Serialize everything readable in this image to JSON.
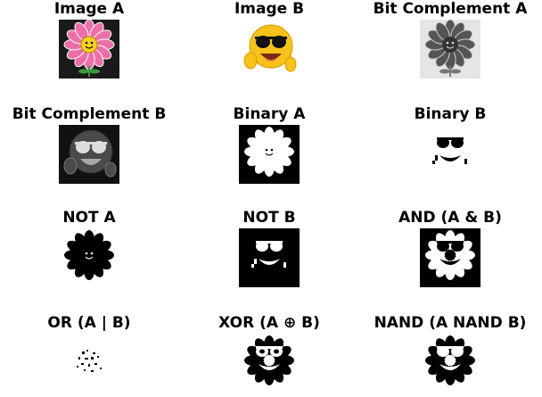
{
  "panels": [
    {
      "title": "Image A",
      "content": "color-flower"
    },
    {
      "title": "Image B",
      "content": "color-emoji"
    },
    {
      "title": "Bit Complement A",
      "content": "gray-flower"
    },
    {
      "title": "Bit Complement B",
      "content": "gray-emoji"
    },
    {
      "title": "Binary A",
      "content": "binary-flower"
    },
    {
      "title": "Binary B",
      "content": "binary-emoji"
    },
    {
      "title": "NOT A",
      "content": "not-flower"
    },
    {
      "title": "NOT B",
      "content": "not-emoji"
    },
    {
      "title": "AND (A & B)",
      "content": "and-image"
    },
    {
      "title": "OR (A | B)",
      "content": "or-image"
    },
    {
      "title": "XOR (A ⊕ B)",
      "content": "xor-image"
    },
    {
      "title": "NAND (A NAND B)",
      "content": "nand-image"
    }
  ],
  "colors": {
    "petal_pink": "#ee6fa8",
    "petal_light": "#f6b6d2",
    "flower_center": "#f5d21e",
    "emoji_yellow": "#f7c21a",
    "sunglasses": "#111111",
    "leaf_green": "#3a9a3a",
    "black": "#000000",
    "white": "#ffffff"
  }
}
